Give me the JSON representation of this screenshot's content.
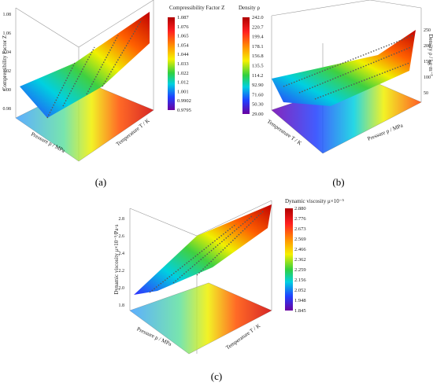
{
  "panels": [
    {
      "label": "(a)",
      "colorbar": {
        "title": "Compressibility Factor Z",
        "ticks": [
          "1.087",
          "1.076",
          "1.065",
          "1.054",
          "1.044",
          "1.033",
          "1.022",
          "1.012",
          "1.001",
          "0.9902",
          "0.9795"
        ]
      },
      "z_axis": "Compressibility Factor Z",
      "x_axis": "Pressure p / MPa",
      "y_axis": "Temperature T / K",
      "z_ticks": [
        "1.08",
        "1.06",
        "1.04",
        "1.02",
        "1.00",
        "0.98"
      ]
    },
    {
      "label": "(b)",
      "colorbar": {
        "title": "Density ρ",
        "ticks": [
          "242.0",
          "220.7",
          "199.4",
          "178.1",
          "156.8",
          "135.5",
          "114.2",
          "92.90",
          "71.60",
          "50.30",
          "29.00"
        ]
      },
      "z_axis": "Density ρ / kg·m⁻³",
      "x_axis": "Pressure p / MPa",
      "y_axis": "Temperature T / K",
      "z_ticks": [
        "250",
        "200",
        "150",
        "100",
        "50"
      ]
    },
    {
      "label": "(c)",
      "colorbar": {
        "title": "Dynamic viscosity μ×10⁻⁵",
        "ticks": [
          "2.880",
          "2.776",
          "2.673",
          "2.569",
          "2.466",
          "2.362",
          "2.259",
          "2.156",
          "2.052",
          "1.948",
          "1.845"
        ]
      },
      "z_axis": "Dynamic viscosity μ×10⁻⁵/Pa·s",
      "x_axis": "Pressure p / MPa",
      "y_axis": "Temperature T / K",
      "z_ticks": [
        "2.8",
        "2.6",
        "2.4",
        "2.2",
        "2.0",
        "1.8"
      ]
    }
  ]
}
